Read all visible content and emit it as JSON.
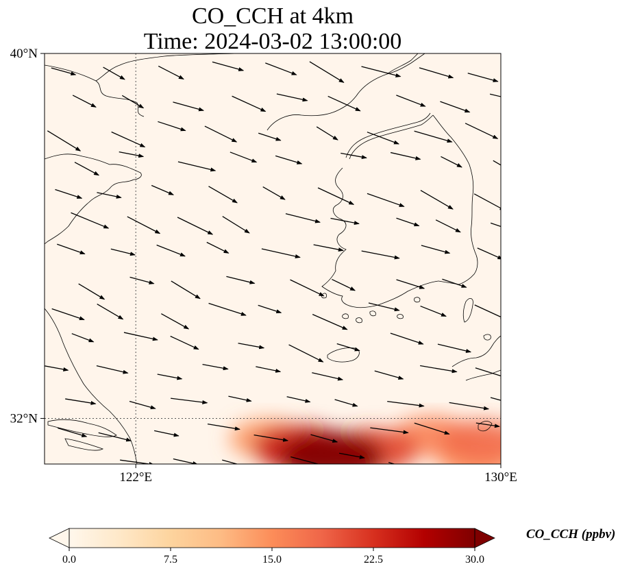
{
  "title": {
    "line1": "CO_CCH at 4km",
    "line2": "Time: 2024-03-02 13:00:00"
  },
  "map": {
    "extent": {
      "lon_min": 120,
      "lon_max": 130,
      "lat_min": 31,
      "lat_max": 40
    },
    "lat_ticks": [
      {
        "value": 40,
        "label": "40°N"
      },
      {
        "value": 32,
        "label": "32°N"
      }
    ],
    "lon_ticks": [
      {
        "value": 122,
        "label": "122°E"
      },
      {
        "value": 130,
        "label": "130°E"
      }
    ],
    "gridlines": [
      {
        "type": "lat",
        "value": 32
      },
      {
        "type": "lon",
        "value": 122
      }
    ],
    "background_color": "#fff5eb",
    "coastline_color": "#000000",
    "wind_vectors": "shown as black arrows, predominantly westerly to west-northwesterly"
  },
  "chart_data": {
    "type": "heatmap",
    "variable": "CO_CCH",
    "units": "ppbv",
    "colormap": "OrRd",
    "colors": [
      "#fff7ec",
      "#fee8c8",
      "#fdd49e",
      "#fdbb84",
      "#fc8d59",
      "#ef6548",
      "#d7301f",
      "#b30000",
      "#7f0000"
    ],
    "field_summary": "Near 0 ppbv over most of the domain; plume of high values along the southern boundary, maximum ~30 ppbv near 126.3°E, 31.2°N, extending east to 130°E at roughly 15-20 ppbv",
    "hotspots": [
      {
        "lon": 126.3,
        "lat": 31.15,
        "value": 30
      },
      {
        "lon": 125.6,
        "lat": 31.35,
        "value": 24
      },
      {
        "lon": 127.2,
        "lat": 31.3,
        "value": 21
      },
      {
        "lon": 124.9,
        "lat": 31.55,
        "value": 14
      },
      {
        "lon": 128.5,
        "lat": 31.6,
        "value": 16
      },
      {
        "lon": 129.6,
        "lat": 31.5,
        "value": 18
      },
      {
        "lon": 129.5,
        "lat": 31.1,
        "value": 15
      }
    ]
  },
  "colorbar": {
    "min": 0,
    "max": 30,
    "ticks": [
      {
        "value": 0,
        "label": "0.0"
      },
      {
        "value": 7.5,
        "label": "7.5"
      },
      {
        "value": 15,
        "label": "15.0"
      },
      {
        "value": 22.5,
        "label": "22.5"
      },
      {
        "value": 30,
        "label": "30.0"
      }
    ],
    "extend": "both",
    "label": "CO_CCH (ppbv)"
  }
}
